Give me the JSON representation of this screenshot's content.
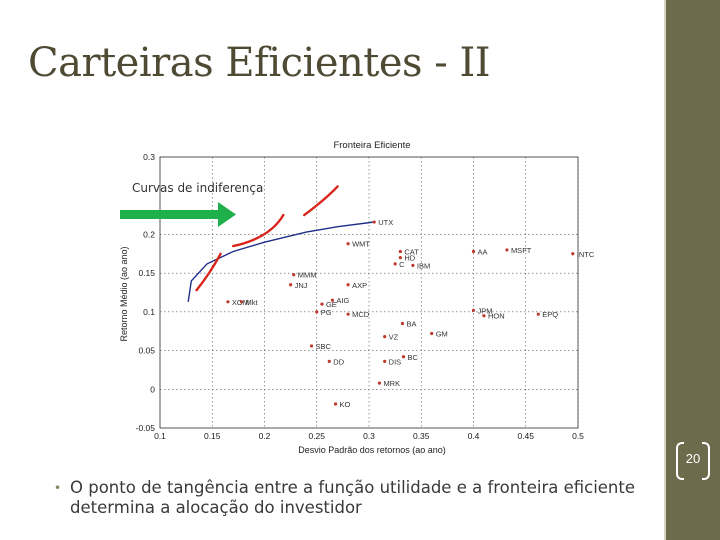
{
  "slide": {
    "title": "Carteiras Eficientes - II",
    "page_number": "20",
    "bullet": "O ponto de tangência entre a função utilidade e a fronteira eficiente determina a alocação do investidor"
  },
  "colors": {
    "sidebar": "#6e6b4c",
    "points": "#c0392b",
    "frontier": "#1f2f8a",
    "curves": "#d9261c",
    "arrow": "#1fb04c"
  },
  "chart_data": {
    "type": "scatter",
    "title": "Fronteira Eficiente",
    "xlabel": "Desvio Padrão dos retornos (ao ano)",
    "ylabel": "Retorno Médio (ao ano)",
    "xlim": [
      0.1,
      0.5
    ],
    "ylim": [
      -0.05,
      0.3
    ],
    "xticks": [
      "0.1",
      "0.15",
      "0.2",
      "0.25",
      "0.3",
      "0.35",
      "0.4",
      "0.45",
      "0.5"
    ],
    "yticks": [
      "-0.05",
      "0",
      "0.05",
      "0.1",
      "0.15",
      "0.2",
      "0.3"
    ],
    "grid": true,
    "annotation": "Curvas de indiferença",
    "points": [
      {
        "label": "UTX",
        "x": 0.305,
        "y": 0.216
      },
      {
        "label": "WMT",
        "x": 0.28,
        "y": 0.188
      },
      {
        "label": "CAT",
        "x": 0.33,
        "y": 0.178
      },
      {
        "label": "HD",
        "x": 0.33,
        "y": 0.17
      },
      {
        "label": "C",
        "x": 0.325,
        "y": 0.162
      },
      {
        "label": "IBM",
        "x": 0.342,
        "y": 0.16
      },
      {
        "label": "AA",
        "x": 0.4,
        "y": 0.178
      },
      {
        "label": "MSFT",
        "x": 0.432,
        "y": 0.18
      },
      {
        "label": "INTC",
        "x": 0.495,
        "y": 0.175
      },
      {
        "label": "MMM",
        "x": 0.228,
        "y": 0.148
      },
      {
        "label": "JNJ",
        "x": 0.225,
        "y": 0.135
      },
      {
        "label": "AXP",
        "x": 0.28,
        "y": 0.135
      },
      {
        "label": "XOM",
        "x": 0.165,
        "y": 0.113
      },
      {
        "label": "Mkt",
        "x": 0.178,
        "y": 0.113
      },
      {
        "label": "GE",
        "x": 0.255,
        "y": 0.11
      },
      {
        "label": "AIG",
        "x": 0.265,
        "y": 0.115
      },
      {
        "label": "PG",
        "x": 0.25,
        "y": 0.1
      },
      {
        "label": "MCD",
        "x": 0.28,
        "y": 0.097
      },
      {
        "label": "JPM",
        "x": 0.4,
        "y": 0.102
      },
      {
        "label": "HON",
        "x": 0.41,
        "y": 0.095
      },
      {
        "label": "EPQ",
        "x": 0.462,
        "y": 0.097
      },
      {
        "label": "BA",
        "x": 0.332,
        "y": 0.085
      },
      {
        "label": "GM",
        "x": 0.36,
        "y": 0.072
      },
      {
        "label": "VZ",
        "x": 0.315,
        "y": 0.068
      },
      {
        "label": "SBC",
        "x": 0.245,
        "y": 0.056
      },
      {
        "label": "BC",
        "x": 0.333,
        "y": 0.042
      },
      {
        "label": "DD",
        "x": 0.262,
        "y": 0.036
      },
      {
        "label": "DIS",
        "x": 0.315,
        "y": 0.036
      },
      {
        "label": "MRK",
        "x": 0.31,
        "y": 0.008
      },
      {
        "label": "KO",
        "x": 0.268,
        "y": -0.019
      }
    ]
  }
}
